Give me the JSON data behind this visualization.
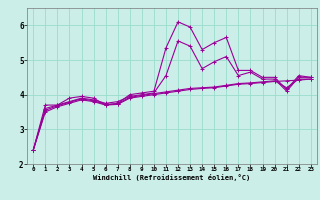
{
  "xlabel": "Windchill (Refroidissement éolien,°C)",
  "background_color": "#cceee8",
  "line_color": "#990099",
  "xlim": [
    -0.5,
    23.5
  ],
  "ylim": [
    2.0,
    6.5
  ],
  "xticks": [
    0,
    1,
    2,
    3,
    4,
    5,
    6,
    7,
    8,
    9,
    10,
    11,
    12,
    13,
    14,
    15,
    16,
    17,
    18,
    19,
    20,
    21,
    22,
    23
  ],
  "yticks": [
    2,
    3,
    4,
    5,
    6
  ],
  "grid_color": "#99ddcc",
  "series": [
    [
      2.4,
      3.7,
      3.7,
      3.9,
      3.95,
      3.9,
      3.7,
      3.75,
      4.0,
      4.05,
      4.1,
      5.35,
      6.1,
      5.95,
      5.3,
      5.5,
      5.65,
      4.7,
      4.7,
      4.5,
      4.5,
      4.15,
      4.55,
      4.5
    ],
    [
      2.4,
      3.6,
      3.7,
      3.8,
      3.9,
      3.85,
      3.75,
      3.8,
      3.95,
      4.0,
      4.05,
      4.55,
      5.55,
      5.4,
      4.75,
      4.95,
      5.1,
      4.55,
      4.65,
      4.45,
      4.45,
      4.1,
      4.5,
      4.5
    ],
    [
      2.4,
      3.5,
      3.65,
      3.75,
      3.85,
      3.8,
      3.7,
      3.72,
      3.9,
      3.95,
      4.0,
      4.05,
      4.1,
      4.15,
      4.18,
      4.2,
      4.25,
      4.3,
      4.32,
      4.35,
      4.38,
      4.4,
      4.42,
      4.45
    ],
    [
      2.4,
      3.55,
      3.68,
      3.78,
      3.88,
      3.82,
      3.72,
      3.74,
      3.92,
      3.98,
      4.03,
      4.08,
      4.13,
      4.18,
      4.2,
      4.22,
      4.27,
      4.32,
      4.34,
      4.37,
      4.4,
      4.2,
      4.45,
      4.45
    ]
  ]
}
